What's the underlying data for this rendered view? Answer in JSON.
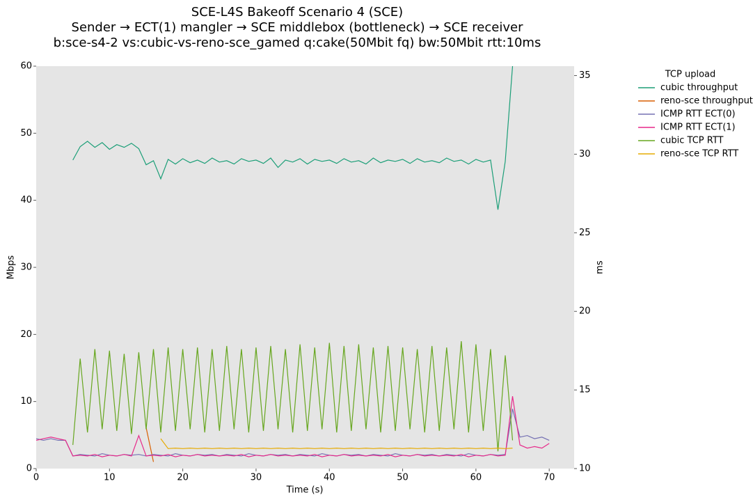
{
  "chart_data": {
    "type": "line",
    "title": [
      "SCE-L4S Bakeoff Scenario 4 (SCE)",
      "Sender → ECT(1) mangler → SCE middlebox (bottleneck) → SCE receiver",
      "b:sce-s4-2 vs:cubic-vs-reno-sce_gamed q:cake(50Mbit fq) bw:50Mbit rtt:10ms"
    ],
    "x_label": "Time (s)",
    "y_label": "Mbps",
    "y2_label": "ms",
    "legend_title": "TCP upload",
    "legend": "outside-upper-right",
    "xlim": [
      0,
      73.4
    ],
    "xticks": [
      0,
      10,
      20,
      30,
      40,
      50,
      60,
      70
    ],
    "ylim": [
      0,
      60
    ],
    "yticks": [
      0,
      10,
      20,
      30,
      40,
      50,
      60
    ],
    "y2lim": [
      10,
      35.6
    ],
    "y2ticks": [
      10,
      15,
      20,
      25,
      30,
      35
    ],
    "x": [
      0,
      1,
      2,
      3,
      4,
      5,
      6,
      7,
      8,
      9,
      10,
      11,
      12,
      13,
      14,
      15,
      16,
      17,
      18,
      19,
      20,
      21,
      22,
      23,
      24,
      25,
      26,
      27,
      28,
      29,
      30,
      31,
      32,
      33,
      34,
      35,
      36,
      37,
      38,
      39,
      40,
      41,
      42,
      43,
      44,
      45,
      46,
      47,
      48,
      49,
      50,
      51,
      52,
      53,
      54,
      55,
      56,
      57,
      58,
      59,
      60,
      61,
      62,
      63,
      64,
      65,
      66,
      67,
      68,
      69,
      70
    ],
    "series": [
      {
        "name": "cubic throughput",
        "color": "#1b9e77",
        "axis": "y",
        "values": [
          null,
          null,
          null,
          null,
          null,
          46,
          48,
          48.8,
          47.9,
          48.6,
          47.6,
          48.3,
          47.9,
          48.5,
          47.7,
          45.3,
          45.9,
          43.2,
          46.1,
          45.4,
          46.2,
          45.6,
          46.0,
          45.5,
          46.3,
          45.7,
          45.9,
          45.4,
          46.2,
          45.8,
          46.0,
          45.5,
          46.3,
          44.9,
          46.0,
          45.7,
          46.2,
          45.4,
          46.1,
          45.8,
          46.0,
          45.5,
          46.2,
          45.7,
          45.9,
          45.4,
          46.3,
          45.6,
          46.0,
          45.8,
          46.1,
          45.5,
          46.2,
          45.7,
          45.9,
          45.6,
          46.3,
          45.8,
          46.0,
          45.4,
          46.1,
          45.7,
          46.0,
          38.6,
          45.8,
          60,
          null,
          null,
          null,
          null,
          null
        ]
      },
      {
        "name": "reno-sce throughput",
        "color": "#d95f02",
        "axis": "y",
        "values": [
          null,
          null,
          null,
          null,
          null,
          null,
          null,
          null,
          null,
          null,
          null,
          null,
          null,
          null,
          null,
          6.1,
          1.0,
          null,
          null,
          null,
          null,
          null,
          null,
          null,
          null,
          null,
          null,
          null,
          null,
          null,
          null,
          null,
          null,
          null,
          null,
          null,
          null,
          null,
          null,
          null,
          null,
          null,
          null,
          null,
          null,
          null,
          null,
          null,
          null,
          null,
          null,
          null,
          null,
          null,
          null,
          null,
          null,
          null,
          null,
          null,
          null,
          null,
          null,
          null,
          null,
          null,
          null,
          null,
          null,
          null,
          null
        ]
      },
      {
        "name": "ICMP RTT ECT(0)",
        "color": "#7570b3",
        "axis": "y2",
        "values": [
          11.9,
          11.8,
          11.9,
          11.8,
          11.8,
          10.8,
          10.9,
          10.85,
          10.8,
          10.95,
          10.85,
          10.8,
          10.9,
          10.85,
          10.9,
          10.8,
          10.9,
          10.85,
          10.8,
          10.95,
          10.85,
          10.8,
          10.9,
          10.85,
          10.9,
          10.8,
          10.9,
          10.85,
          10.8,
          10.95,
          10.85,
          10.8,
          10.9,
          10.85,
          10.9,
          10.8,
          10.9,
          10.85,
          10.8,
          10.95,
          10.85,
          10.8,
          10.9,
          10.85,
          10.9,
          10.8,
          10.9,
          10.85,
          10.8,
          10.95,
          10.85,
          10.8,
          10.9,
          10.85,
          10.9,
          10.8,
          10.9,
          10.85,
          10.8,
          10.95,
          10.85,
          10.8,
          10.9,
          10.85,
          10.9,
          13.8,
          12.0,
          12.1,
          11.9,
          12.0,
          11.8
        ]
      },
      {
        "name": "ICMP RTT ECT(1)",
        "color": "#e7298a",
        "axis": "y2",
        "values": [
          11.8,
          11.9,
          12.0,
          11.9,
          11.8,
          10.8,
          10.85,
          10.8,
          10.9,
          10.75,
          10.85,
          10.8,
          10.9,
          10.8,
          12.1,
          10.8,
          10.85,
          10.8,
          10.9,
          10.75,
          10.85,
          10.8,
          10.9,
          10.8,
          10.85,
          10.8,
          10.85,
          10.8,
          10.9,
          10.75,
          10.85,
          10.8,
          10.9,
          10.8,
          10.85,
          10.8,
          10.85,
          10.8,
          10.9,
          10.75,
          10.85,
          10.8,
          10.9,
          10.8,
          10.85,
          10.8,
          10.85,
          10.8,
          10.9,
          10.75,
          10.85,
          10.8,
          10.9,
          10.8,
          10.85,
          10.8,
          10.85,
          10.8,
          10.9,
          10.75,
          10.85,
          10.8,
          10.9,
          10.8,
          10.85,
          14.6,
          11.5,
          11.3,
          11.4,
          11.3,
          11.6
        ]
      },
      {
        "name": "cubic TCP RTT",
        "color": "#66a61e",
        "axis": "y2",
        "values": [
          null,
          null,
          null,
          null,
          null,
          11.5,
          17.0,
          12.3,
          17.6,
          12.5,
          17.5,
          12.4,
          17.3,
          12.2,
          17.4,
          12.5,
          17.6,
          12.3,
          17.7,
          12.4,
          17.6,
          12.5,
          17.7,
          12.3,
          17.6,
          12.4,
          17.8,
          12.5,
          17.6,
          12.3,
          17.7,
          12.4,
          17.8,
          12.5,
          17.6,
          12.3,
          17.9,
          12.4,
          17.7,
          12.5,
          18.0,
          12.3,
          17.8,
          12.4,
          17.9,
          12.5,
          17.7,
          12.3,
          17.8,
          12.4,
          17.7,
          12.5,
          17.6,
          12.3,
          17.8,
          12.4,
          17.7,
          12.5,
          18.1,
          12.3,
          17.9,
          12.4,
          17.6,
          11.1,
          17.2,
          11.8,
          null,
          null,
          null,
          null,
          null
        ]
      },
      {
        "name": "reno-sce TCP RTT",
        "color": "#e6ab02",
        "axis": "y2",
        "values": [
          null,
          null,
          null,
          null,
          null,
          null,
          null,
          null,
          null,
          null,
          null,
          null,
          null,
          null,
          null,
          null,
          null,
          11.9,
          11.27,
          11.3,
          11.27,
          11.3,
          11.27,
          11.3,
          11.27,
          11.3,
          11.27,
          11.3,
          11.27,
          11.3,
          11.27,
          11.3,
          11.27,
          11.3,
          11.27,
          11.3,
          11.27,
          11.3,
          11.27,
          11.3,
          11.27,
          11.3,
          11.27,
          11.3,
          11.27,
          11.3,
          11.27,
          11.3,
          11.27,
          11.3,
          11.27,
          11.3,
          11.27,
          11.3,
          11.27,
          11.3,
          11.27,
          11.3,
          11.27,
          11.3,
          11.27,
          11.3,
          11.27,
          11.3,
          11.27,
          11.3,
          null,
          null,
          null,
          null,
          null
        ]
      }
    ]
  }
}
